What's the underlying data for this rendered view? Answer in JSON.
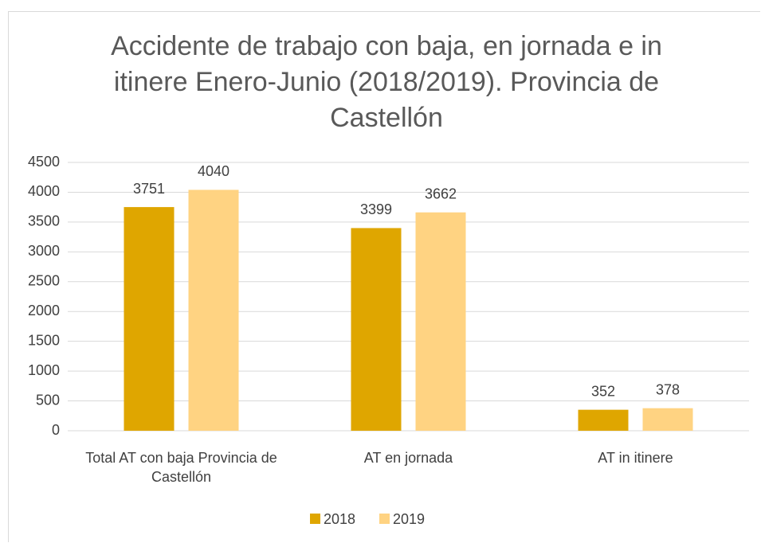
{
  "chart_data": {
    "type": "bar",
    "title": "Accidente de trabajo con baja, en jornada e in itinere Enero-Junio (2018/2019). Provincia de Castellón",
    "categories": [
      "Total AT con baja Provincia de Castellón",
      "AT en jornada",
      "AT in itinere"
    ],
    "series": [
      {
        "name": "2018",
        "color": "#dfa600",
        "values": [
          3751,
          3399,
          352
        ]
      },
      {
        "name": "2019",
        "color": "#ffd382",
        "values": [
          4040,
          3662,
          378
        ]
      }
    ],
    "ylim": [
      0,
      4500
    ],
    "yticks": [
      0,
      500,
      1000,
      1500,
      2000,
      2500,
      3000,
      3500,
      4000,
      4500
    ],
    "grid": true,
    "legend": "bottom"
  }
}
